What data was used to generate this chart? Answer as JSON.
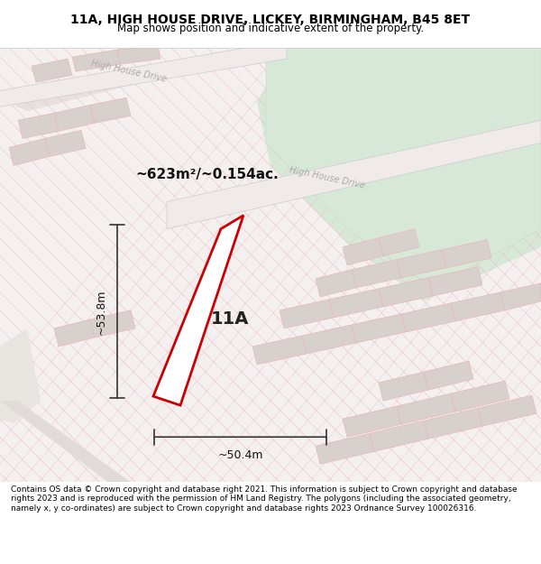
{
  "title_line1": "11A, HIGH HOUSE DRIVE, LICKEY, BIRMINGHAM, B45 8ET",
  "title_line2": "Map shows position and indicative extent of the property.",
  "footer_text": "Contains OS data © Crown copyright and database right 2021. This information is subject to Crown copyright and database rights 2023 and is reproduced with the permission of HM Land Registry. The polygons (including the associated geometry, namely x, y co-ordinates) are subject to Crown copyright and database rights 2023 Ordnance Survey 100026316.",
  "area_label": "~623m²/~0.154ac.",
  "label_11A": "11A",
  "dim_h": "~53.8m",
  "dim_w": "~50.4m",
  "bg_map_color": "#f5f0f0",
  "bg_green_color": "#d8e8d8",
  "road_color": "#ffffff",
  "hatch_line_color": "#e8b8b8",
  "plot_outline_color": "#cc0000",
  "dim_line_color": "#333333",
  "title_bg": "#ffffff",
  "footer_bg": "#ffffff",
  "road_label1": "High House Drive",
  "road_label2": "High House Drive"
}
